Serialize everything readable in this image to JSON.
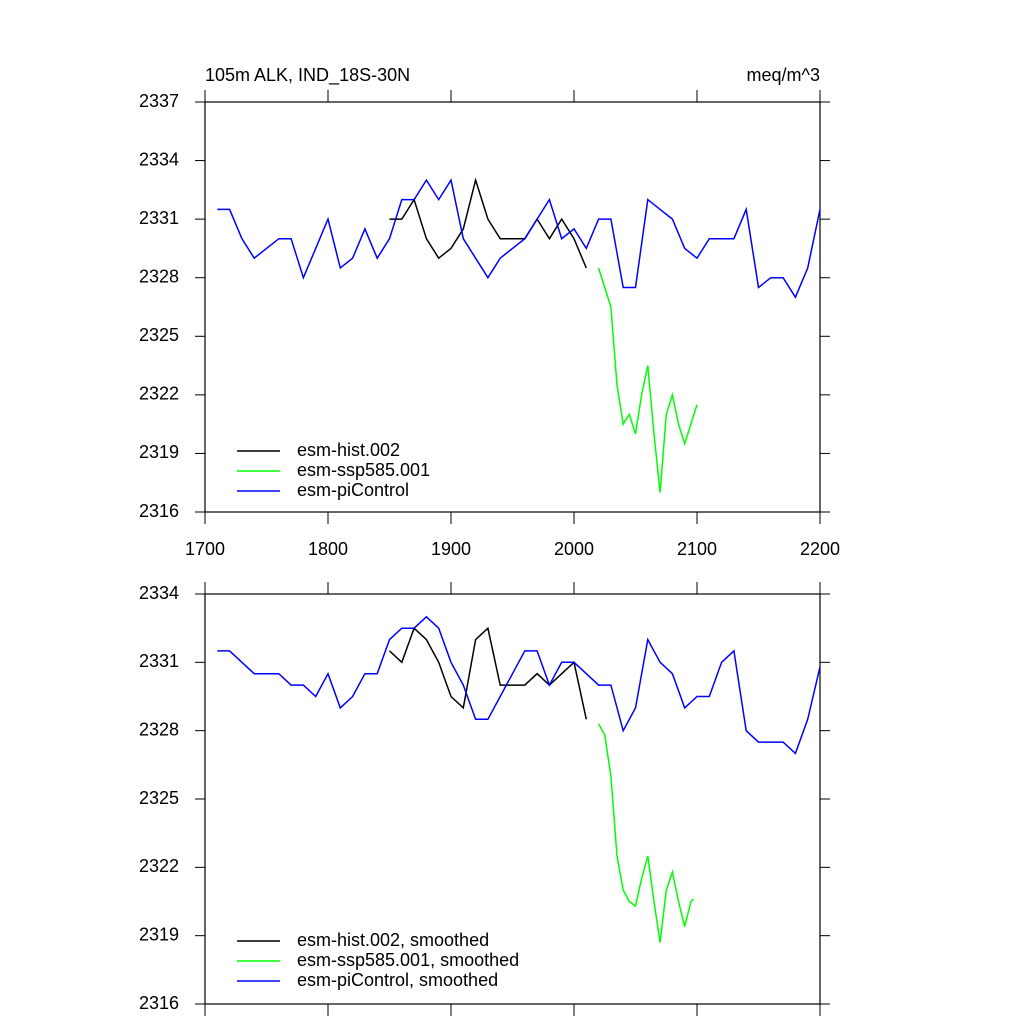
{
  "chart_data": [
    {
      "type": "line",
      "title": "105m ALK, IND_18S-30N",
      "units": "meq/m^3",
      "xlim": [
        1700,
        2200
      ],
      "xticks": [
        1700,
        1800,
        1900,
        2000,
        2100,
        2200
      ],
      "xticklabels": true,
      "ylim": [
        2316,
        2337
      ],
      "yticks": [
        2316,
        2319,
        2322,
        2325,
        2328,
        2331,
        2334,
        2337
      ],
      "legend": "lower left",
      "series": [
        {
          "name": "esm-hist.002",
          "color": "#000000",
          "x": [
            1850,
            1860,
            1870,
            1880,
            1890,
            1900,
            1910,
            1920,
            1930,
            1940,
            1950,
            1960,
            1970,
            1980,
            1990,
            2000,
            2010
          ],
          "values": [
            2331,
            2331,
            2332,
            2330,
            2329,
            2329.5,
            2330.5,
            2333,
            2331,
            2330,
            2330,
            2330,
            2331,
            2330,
            2331,
            2330,
            2328.5
          ]
        },
        {
          "name": "esm-ssp585.001",
          "color": "#00ff00",
          "x": [
            2020,
            2025,
            2030,
            2035,
            2040,
            2045,
            2050,
            2055,
            2060,
            2065,
            2070,
            2075,
            2080,
            2085,
            2090,
            2095,
            2100
          ],
          "values": [
            2328.5,
            2327.5,
            2326.5,
            2322.5,
            2320.5,
            2321,
            2320,
            2322,
            2323.5,
            2320,
            2317,
            2321,
            2322,
            2320.5,
            2319.5,
            2320.5,
            2321.5
          ]
        },
        {
          "name": "esm-piControl",
          "color": "#0000ff",
          "x": [
            1710,
            1720,
            1730,
            1740,
            1750,
            1760,
            1770,
            1780,
            1790,
            1800,
            1810,
            1820,
            1830,
            1840,
            1850,
            1860,
            1870,
            1880,
            1890,
            1900,
            1910,
            1920,
            1930,
            1940,
            1950,
            1960,
            1970,
            1980,
            1990,
            2000,
            2010,
            2020,
            2030,
            2040,
            2050,
            2060,
            2070,
            2080,
            2090,
            2100,
            2110,
            2120,
            2130,
            2140,
            2150,
            2160,
            2170,
            2180,
            2190,
            2200
          ],
          "values": [
            2331.5,
            2331.5,
            2330,
            2329,
            2329.5,
            2330,
            2330,
            2328,
            2329.5,
            2331,
            2328.5,
            2329,
            2330.5,
            2329,
            2330,
            2332,
            2332,
            2333,
            2332,
            2333,
            2330,
            2329,
            2328,
            2329,
            2329.5,
            2330,
            2331,
            2332,
            2330,
            2330.5,
            2329.5,
            2331,
            2331,
            2327.5,
            2327.5,
            2332,
            2331.5,
            2331,
            2329.5,
            2329,
            2330,
            2330,
            2330,
            2331.5,
            2327.5,
            2328,
            2328,
            2327,
            2328.5,
            2331.5
          ]
        }
      ]
    },
    {
      "type": "line",
      "xlim": [
        1700,
        2200
      ],
      "xticks": [
        1700,
        1800,
        1900,
        2000,
        2100,
        2200
      ],
      "xticklabels": false,
      "ylim": [
        2316,
        2334
      ],
      "yticks": [
        2316,
        2319,
        2322,
        2325,
        2328,
        2331,
        2334
      ],
      "legend": "lower left",
      "series": [
        {
          "name": "esm-hist.002, smoothed",
          "color": "#000000",
          "x": [
            1850,
            1860,
            1870,
            1880,
            1890,
            1900,
            1910,
            1920,
            1930,
            1940,
            1950,
            1960,
            1970,
            1980,
            1990,
            2000,
            2010
          ],
          "values": [
            2331.5,
            2331,
            2332.5,
            2332,
            2331,
            2329.5,
            2329,
            2332,
            2332.5,
            2330,
            2330,
            2330,
            2330.5,
            2330,
            2330.5,
            2331,
            2328.5
          ]
        },
        {
          "name": "esm-ssp585.001, smoothed",
          "color": "#00ff00",
          "x": [
            2020,
            2025,
            2030,
            2035,
            2040,
            2045,
            2050,
            2055,
            2060,
            2065,
            2070,
            2075,
            2080,
            2085,
            2090,
            2095,
            2097
          ],
          "values": [
            2328.3,
            2327.8,
            2326,
            2322.5,
            2321,
            2320.5,
            2320.3,
            2321.5,
            2322.5,
            2320.5,
            2318.7,
            2321,
            2321.8,
            2320.5,
            2319.4,
            2320.5,
            2320.6
          ]
        },
        {
          "name": "esm-piControl, smoothed",
          "color": "#0000ff",
          "x": [
            1710,
            1720,
            1730,
            1740,
            1750,
            1760,
            1770,
            1780,
            1790,
            1800,
            1810,
            1820,
            1830,
            1840,
            1850,
            1860,
            1870,
            1880,
            1890,
            1900,
            1910,
            1920,
            1930,
            1940,
            1950,
            1960,
            1970,
            1980,
            1990,
            2000,
            2010,
            2020,
            2030,
            2040,
            2050,
            2060,
            2070,
            2080,
            2090,
            2100,
            2110,
            2120,
            2130,
            2140,
            2150,
            2160,
            2170,
            2180,
            2190,
            2200
          ],
          "values": [
            2331.5,
            2331.5,
            2331,
            2330.5,
            2330.5,
            2330.5,
            2330,
            2330,
            2329.5,
            2330.5,
            2329,
            2329.5,
            2330.5,
            2330.5,
            2332,
            2332.5,
            2332.5,
            2333,
            2332.5,
            2331,
            2330,
            2328.5,
            2328.5,
            2329.5,
            2330.5,
            2331.5,
            2331.5,
            2330,
            2331,
            2331,
            2330.5,
            2330,
            2330,
            2328,
            2329,
            2332,
            2331,
            2330.5,
            2329,
            2329.5,
            2329.5,
            2331,
            2331.5,
            2328,
            2327.5,
            2327.5,
            2327.5,
            2327,
            2328.5,
            2330.8
          ]
        }
      ]
    }
  ]
}
